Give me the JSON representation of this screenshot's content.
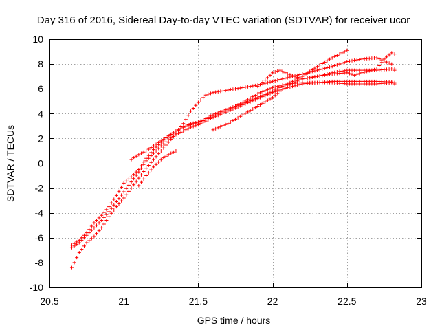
{
  "chart_data": {
    "type": "scatter",
    "title": "Day 316 of 2016, Sidereal Day-to-day VTEC variation (SDTVAR) for receiver ucor",
    "xlabel": "GPS time / hours",
    "ylabel": "SDTVAR / TECUs",
    "xlim": [
      20.5,
      23
    ],
    "ylim": [
      -10,
      10
    ],
    "xticks": [
      20.5,
      21,
      21.5,
      22,
      22.5,
      23
    ],
    "xtick_labels": [
      "20.5",
      "21",
      "21.5",
      "22",
      "22.5",
      "23"
    ],
    "yticks": [
      -10,
      -8,
      -6,
      -4,
      -2,
      0,
      2,
      4,
      6,
      8,
      10
    ],
    "ytick_labels": [
      "-10",
      "-8",
      "-6",
      "-4",
      "-2",
      "0",
      "2",
      "4",
      "6",
      "8",
      "10"
    ],
    "grid": true,
    "marker": "+",
    "color": "#ff0000",
    "series": [
      {
        "x": [
          20.65,
          20.7,
          20.75,
          20.8,
          20.85,
          20.9,
          20.95,
          21.0,
          21.05,
          21.1,
          21.15,
          21.2,
          21.25,
          21.3,
          21.35,
          21.4,
          21.45,
          21.5,
          21.55,
          21.6,
          21.7,
          21.8,
          21.9,
          22.0,
          22.1,
          22.2,
          22.3,
          22.4,
          22.5
        ],
        "y": [
          -6.6,
          -6.2,
          -5.6,
          -4.8,
          -4.2,
          -3.5,
          -2.6,
          -1.6,
          -1.1,
          -0.5,
          0.4,
          1.1,
          1.7,
          2.2,
          2.6,
          2.9,
          3.1,
          3.3,
          3.6,
          3.9,
          4.4,
          4.8,
          5.3,
          5.8,
          6.4,
          7.0,
          7.8,
          8.5,
          9.1
        ]
      },
      {
        "x": [
          20.65,
          20.7,
          20.75,
          20.8,
          20.85,
          20.9,
          20.95,
          21.0,
          21.05,
          21.1,
          21.15,
          21.2,
          21.25,
          21.3,
          21.35,
          21.4,
          21.45,
          21.5,
          21.55,
          21.6,
          21.7,
          21.8,
          21.9,
          22.0,
          22.1,
          22.2,
          22.3,
          22.4,
          22.5,
          22.6,
          22.7,
          22.8,
          22.82
        ],
        "y": [
          -6.8,
          -6.4,
          -5.8,
          -5.2,
          -4.6,
          -3.9,
          -3.1,
          -2.3,
          -1.5,
          -0.7,
          0.2,
          0.8,
          1.4,
          1.9,
          2.3,
          2.6,
          2.9,
          3.1,
          3.4,
          3.7,
          4.2,
          4.7,
          5.2,
          5.7,
          6.1,
          6.4,
          6.5,
          6.6,
          6.6,
          6.6,
          6.6,
          6.55,
          6.5
        ]
      },
      {
        "x": [
          20.65,
          20.7,
          20.75,
          20.8,
          20.85,
          20.9,
          20.95,
          21.0,
          21.05,
          21.1,
          21.15,
          21.2,
          21.25,
          21.3,
          21.35,
          21.4,
          21.45,
          21.5,
          21.55,
          21.6,
          21.7,
          21.8,
          21.9,
          22.0,
          22.1,
          22.2,
          22.3,
          22.4,
          22.5,
          22.6,
          22.7,
          22.8,
          22.82
        ],
        "y": [
          -8.4,
          -7.2,
          -6.4,
          -5.9,
          -5.2,
          -4.3,
          -3.5,
          -2.8,
          -2.0,
          -1.2,
          -0.4,
          0.3,
          1.0,
          1.7,
          2.4,
          3.2,
          4.2,
          4.9,
          5.5,
          5.7,
          5.9,
          6.1,
          6.3,
          6.6,
          6.9,
          7.2,
          7.5,
          7.8,
          8.2,
          8.4,
          8.5,
          8.0,
          7.6
        ]
      },
      {
        "x": [
          21.05,
          21.1,
          21.15,
          21.2,
          21.25,
          21.3,
          21.35,
          21.4,
          21.45,
          21.5,
          21.55,
          21.6,
          21.7,
          21.8,
          21.9,
          22.0,
          22.1,
          22.2,
          22.3,
          22.4,
          22.5,
          22.6,
          22.7,
          22.8,
          22.82
        ],
        "y": [
          0.3,
          0.7,
          1.0,
          1.4,
          1.8,
          2.2,
          2.6,
          2.9,
          3.2,
          3.3,
          3.5,
          3.8,
          4.3,
          4.9,
          5.6,
          6.1,
          6.4,
          6.5,
          6.5,
          6.5,
          6.4,
          6.4,
          6.4,
          6.5,
          6.4
        ]
      },
      {
        "x": [
          21.1,
          21.15,
          21.2,
          21.25,
          21.3,
          21.35
        ],
        "y": [
          -1.8,
          -1.0,
          -0.3,
          0.3,
          0.7,
          1.0
        ]
      },
      {
        "x": [
          21.6,
          21.7,
          21.8,
          21.9,
          22.0,
          22.05,
          22.1,
          22.2,
          22.3,
          22.4,
          22.5,
          22.55,
          22.6,
          22.7,
          22.75,
          22.8,
          22.82
        ],
        "y": [
          2.7,
          3.2,
          3.9,
          4.6,
          5.3,
          5.8,
          6.3,
          6.8,
          7.0,
          7.2,
          7.3,
          7.1,
          7.3,
          7.6,
          8.4,
          8.9,
          8.8
        ]
      },
      {
        "x": [
          21.9,
          21.95,
          22.0,
          22.05,
          22.1,
          22.2,
          22.3,
          22.4,
          22.5,
          22.6,
          22.7,
          22.8,
          22.82
        ],
        "y": [
          6.2,
          6.7,
          7.3,
          7.5,
          7.2,
          6.8,
          7.0,
          7.3,
          7.5,
          7.5,
          7.5,
          7.6,
          7.5
        ]
      }
    ]
  }
}
